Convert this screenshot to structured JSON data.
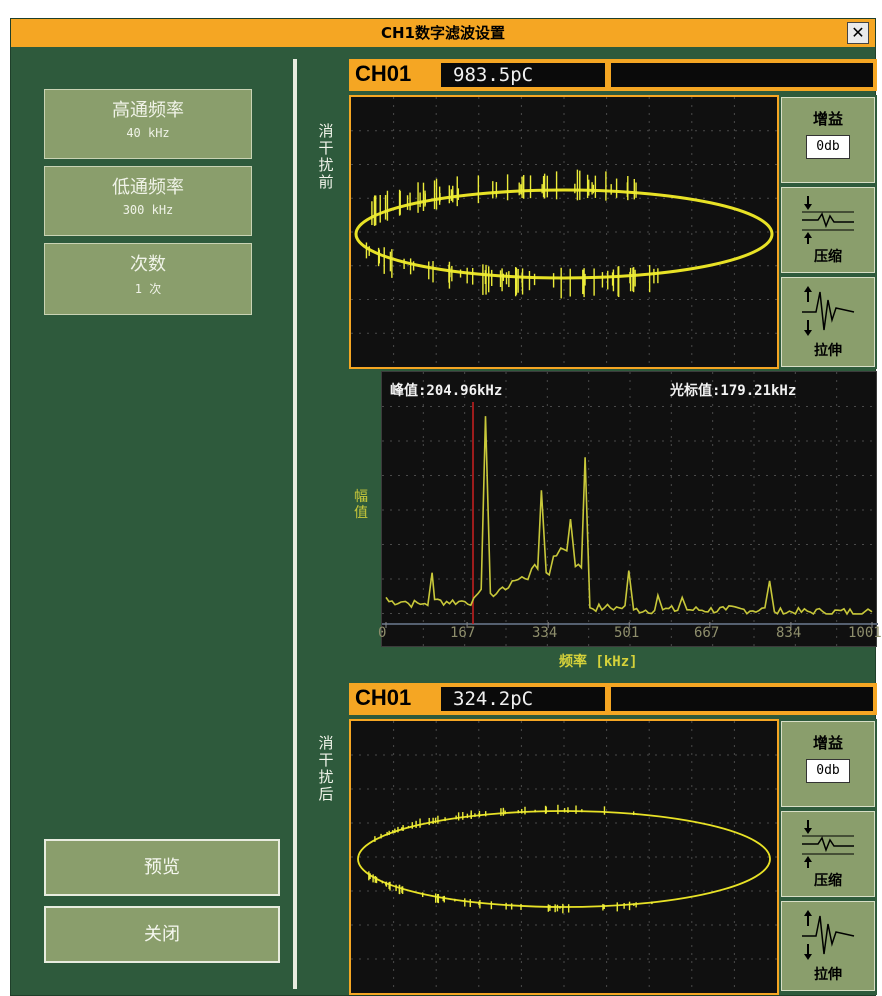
{
  "window": {
    "title": "CH1数字滤波设置",
    "close_symbol": "✕",
    "bg_color": "#2e5a3c",
    "accent_color": "#f5a623"
  },
  "params": [
    {
      "label": "高通频率",
      "value": "40 kHz"
    },
    {
      "label": "低通频率",
      "value": "300 kHz"
    },
    {
      "label": "次数",
      "value": "1 次"
    }
  ],
  "actions": {
    "preview": "预览",
    "close": "关闭"
  },
  "before": {
    "section_label": "消干扰前",
    "channel": "CH01",
    "value": "983.5pC",
    "gain_title": "增益",
    "gain_value": "0db",
    "compress_label": "压缩",
    "stretch_label": "拉伸"
  },
  "after": {
    "section_label": "消干扰后",
    "channel": "CH01",
    "value": "324.2pC",
    "gain_title": "增益",
    "gain_value": "0db",
    "compress_label": "压缩",
    "stretch_label": "拉伸"
  },
  "spectrum": {
    "peak_text": "峰值:204.96kHz",
    "cursor_text": "光标值:179.21kHz",
    "ylabel": "幅值",
    "xlabel": "频率 [kHz]",
    "ticks": [
      "0",
      "167",
      "334",
      "501",
      "667",
      "834",
      "1001"
    ],
    "cursor_color": "#cc2020",
    "trace_color": "#c8c83a"
  },
  "chart_data": {
    "type": "line",
    "title": "",
    "xlabel": "频率 [kHz]",
    "ylabel": "幅值",
    "xlim": [
      0,
      1001
    ],
    "x_ticks": [
      0,
      167,
      334,
      501,
      667,
      834,
      1001
    ],
    "peak_kHz": 204.96,
    "cursor_kHz": 179.21,
    "series": [
      {
        "points": [
          [
            0,
            0.1
          ],
          [
            40,
            0.08
          ],
          [
            80,
            0.07
          ],
          [
            95,
            0.22
          ],
          [
            100,
            0.09
          ],
          [
            150,
            0.08
          ],
          [
            190,
            0.12
          ],
          [
            204.96,
            0.98
          ],
          [
            215,
            0.12
          ],
          [
            240,
            0.15
          ],
          [
            260,
            0.18
          ],
          [
            280,
            0.2
          ],
          [
            300,
            0.24
          ],
          [
            320,
            0.62
          ],
          [
            330,
            0.22
          ],
          [
            345,
            0.3
          ],
          [
            360,
            0.34
          ],
          [
            380,
            0.48
          ],
          [
            390,
            0.25
          ],
          [
            410,
            0.78
          ],
          [
            420,
            0.05
          ],
          [
            450,
            0.05
          ],
          [
            480,
            0.05
          ],
          [
            500,
            0.23
          ],
          [
            510,
            0.04
          ],
          [
            560,
            0.11
          ],
          [
            570,
            0.04
          ],
          [
            610,
            0.1
          ],
          [
            620,
            0.04
          ],
          [
            700,
            0.04
          ],
          [
            790,
            0.18
          ],
          [
            800,
            0.03
          ],
          [
            900,
            0.03
          ],
          [
            1001,
            0.03
          ]
        ]
      }
    ]
  }
}
